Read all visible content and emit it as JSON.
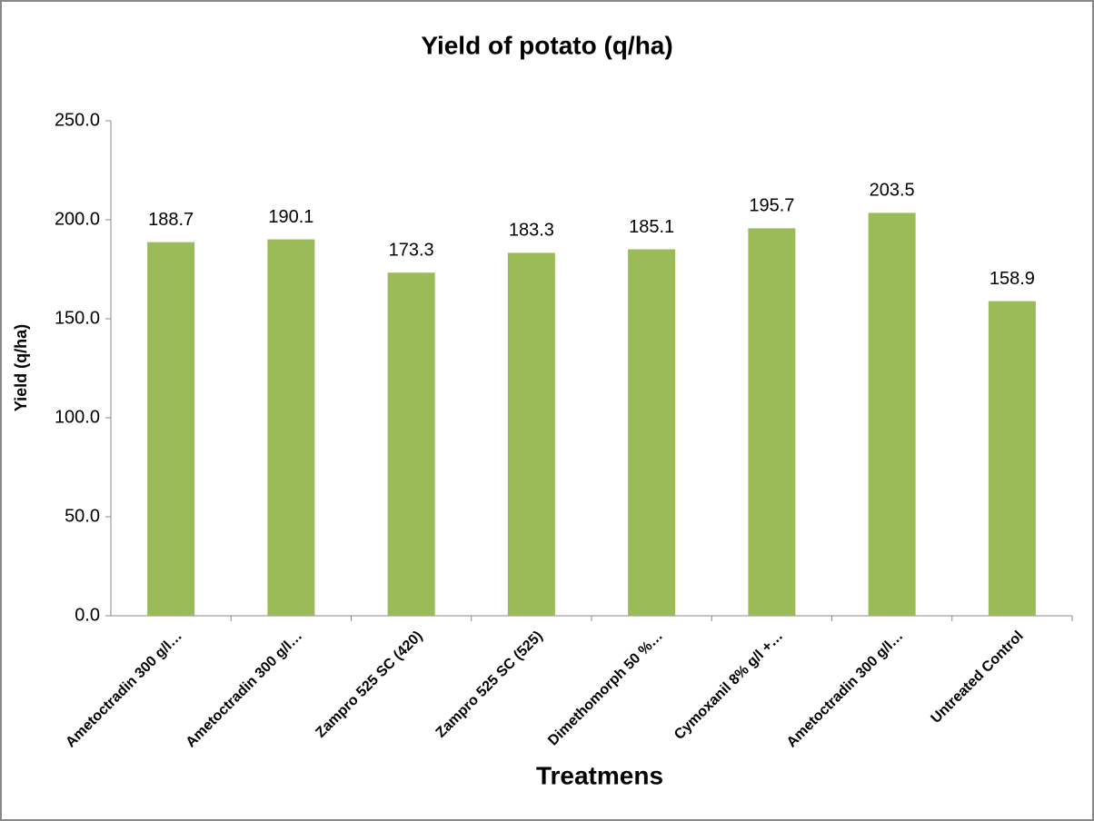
{
  "chart_data": {
    "type": "bar",
    "title": "Yield of potato (q/ha)",
    "x_label": "Treatmens",
    "y_label": "Yield (q/ha)",
    "categories": [
      "Ametoctradin 300 g/l…",
      "Ametoctradin 300 g/l…",
      "Zampro 525 SC (420)",
      "Zampro 525 SC (525)",
      "Dimethomorph 50 %…",
      "Cymoxanil 8% g/l +…",
      "Ametoctradin 300 g/l…",
      "Untreated Control"
    ],
    "values": [
      188.7,
      190.1,
      173.3,
      183.3,
      185.1,
      195.7,
      203.5,
      158.9
    ],
    "color": "#9bbb59",
    "ylim": [
      0,
      250
    ],
    "yticks": [
      {
        "value": 0,
        "label": "0.0"
      },
      {
        "value": 50,
        "label": "50.0"
      },
      {
        "value": 100,
        "label": "100.0"
      },
      {
        "value": 150,
        "label": "150.0"
      },
      {
        "value": 200,
        "label": "200.0"
      },
      {
        "value": 250,
        "label": "250.0"
      }
    ],
    "grid": false
  }
}
